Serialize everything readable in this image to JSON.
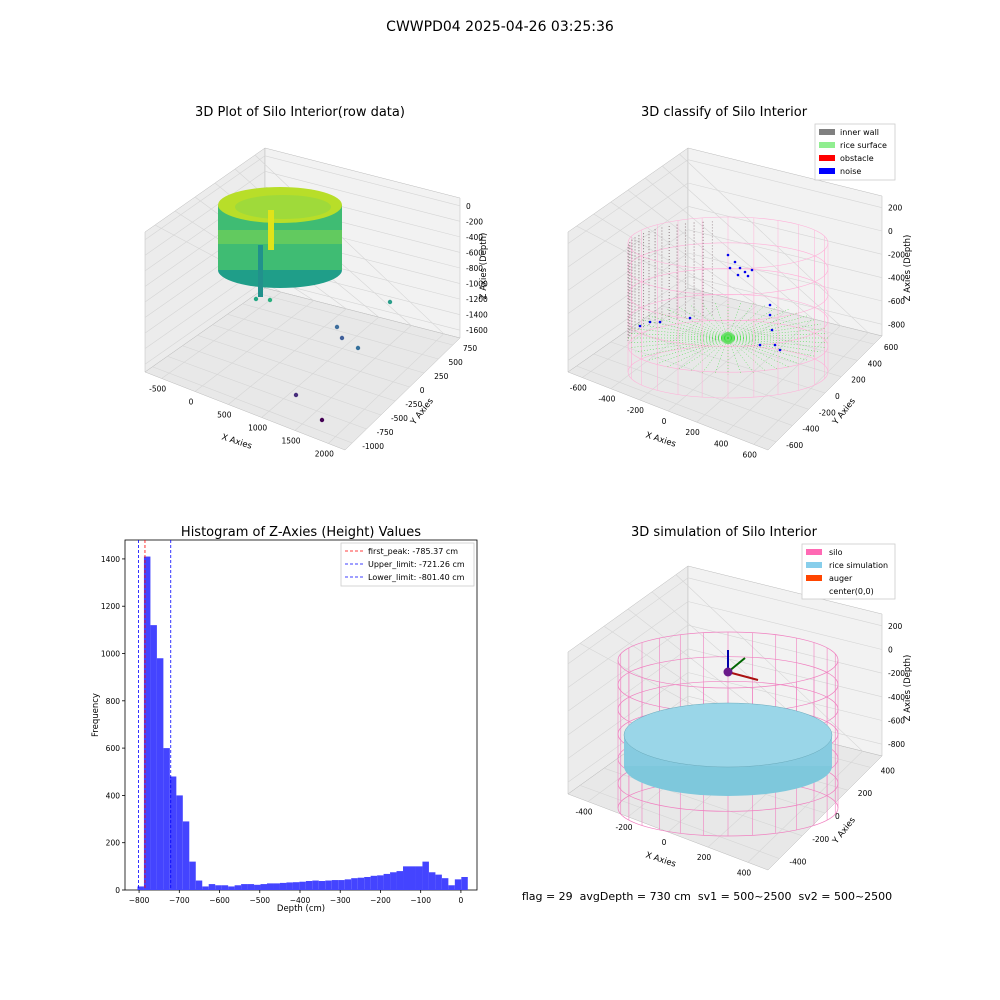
{
  "suptitle": "CWWPD04 2025-04-26 03:25:36",
  "status_line": "flag = 29  avgDepth = 730 cm  sv1 = 500~2500  sv2 = 500~2500",
  "chart_data": [
    {
      "type": "scatter",
      "title": "3D Plot of Silo Interior(row data)",
      "xlabel": "X Axies",
      "ylabel": "Y Axies",
      "zlabel": "Z Axies (Depth)",
      "x_ticks": [
        "-500",
        "0",
        "500",
        "1000",
        "1500",
        "2000"
      ],
      "y_ticks": [
        "-1000",
        "-750",
        "-500",
        "-250",
        "0",
        "250",
        "500",
        "750"
      ],
      "z_ticks": [
        "0",
        "-200",
        "-400",
        "-600",
        "-800",
        "-1000",
        "-1200",
        "-1400",
        "-1600"
      ],
      "colormap": "viridis"
    },
    {
      "type": "scatter",
      "title": "3D classify of Silo Interior",
      "xlabel": "X Axies",
      "ylabel": "Y Axies",
      "zlabel": "Z Axies (Depth)",
      "x_ticks": [
        "-600",
        "-400",
        "-200",
        "0",
        "200",
        "400",
        "600"
      ],
      "y_ticks": [
        "-600",
        "-400",
        "-200",
        "0",
        "200",
        "400",
        "600"
      ],
      "z_ticks": [
        "200",
        "0",
        "-200",
        "-400",
        "-600",
        "-800"
      ],
      "legend_position": "top-right",
      "legend": [
        {
          "name": "inner wall",
          "color": "#808080"
        },
        {
          "name": "rice surface",
          "color": "#90ee90"
        },
        {
          "name": "obstacle",
          "color": "#ff0000"
        },
        {
          "name": "noise",
          "color": "#0000ff"
        }
      ]
    },
    {
      "type": "bar",
      "title": "Histogram of Z-Axies (Height) Values",
      "xlabel": "Depth (cm)",
      "ylabel": "Frequency",
      "xlim": [
        -835,
        40
      ],
      "ylim": [
        0,
        1480
      ],
      "x_ticks": [
        -800,
        -700,
        -600,
        -500,
        -400,
        -300,
        -200,
        -100,
        0
      ],
      "y_ticks": [
        0,
        200,
        400,
        600,
        800,
        1000,
        1200,
        1400
      ],
      "bin_width": 16.1,
      "bin_start": -804,
      "values": [
        15,
        1410,
        1120,
        980,
        600,
        480,
        400,
        290,
        120,
        40,
        15,
        25,
        20,
        20,
        15,
        20,
        25,
        25,
        22,
        25,
        28,
        28,
        30,
        32,
        33,
        35,
        38,
        40,
        38,
        40,
        42,
        42,
        45,
        50,
        52,
        55,
        60,
        62,
        68,
        75,
        80,
        100,
        100,
        100,
        120,
        75,
        65,
        50,
        20,
        45,
        55
      ],
      "bar_color": "#4444ff",
      "lines": [
        {
          "name": "first_peak: -785.37 cm",
          "value": -785.37,
          "color": "#ff0000"
        },
        {
          "name": "Upper_limit: -721.26 cm",
          "value": -721.26,
          "color": "#0000ff"
        },
        {
          "name": "Lower_limit: -801.40 cm",
          "value": -801.4,
          "color": "#0000ff"
        }
      ],
      "legend_position": "top-right"
    },
    {
      "type": "scatter",
      "title": "3D simulation of Silo Interior",
      "xlabel": "X Axies",
      "ylabel": "Y Axies",
      "zlabel": "Z Axies (Depth)",
      "x_ticks": [
        "-400",
        "-200",
        "0",
        "200",
        "400"
      ],
      "y_ticks": [
        "-400",
        "-200",
        "0",
        "200",
        "400"
      ],
      "z_ticks": [
        "200",
        "0",
        "-200",
        "-400",
        "-600",
        "-800"
      ],
      "legend_position": "top-right",
      "legend": [
        {
          "name": "silo",
          "color": "#ff69b4"
        },
        {
          "name": "rice simulation",
          "color": "#87ceeb"
        },
        {
          "name": "auger",
          "color": "#ff4500"
        },
        {
          "name": "center(0,0)",
          "color": "#ffffff"
        }
      ]
    }
  ]
}
